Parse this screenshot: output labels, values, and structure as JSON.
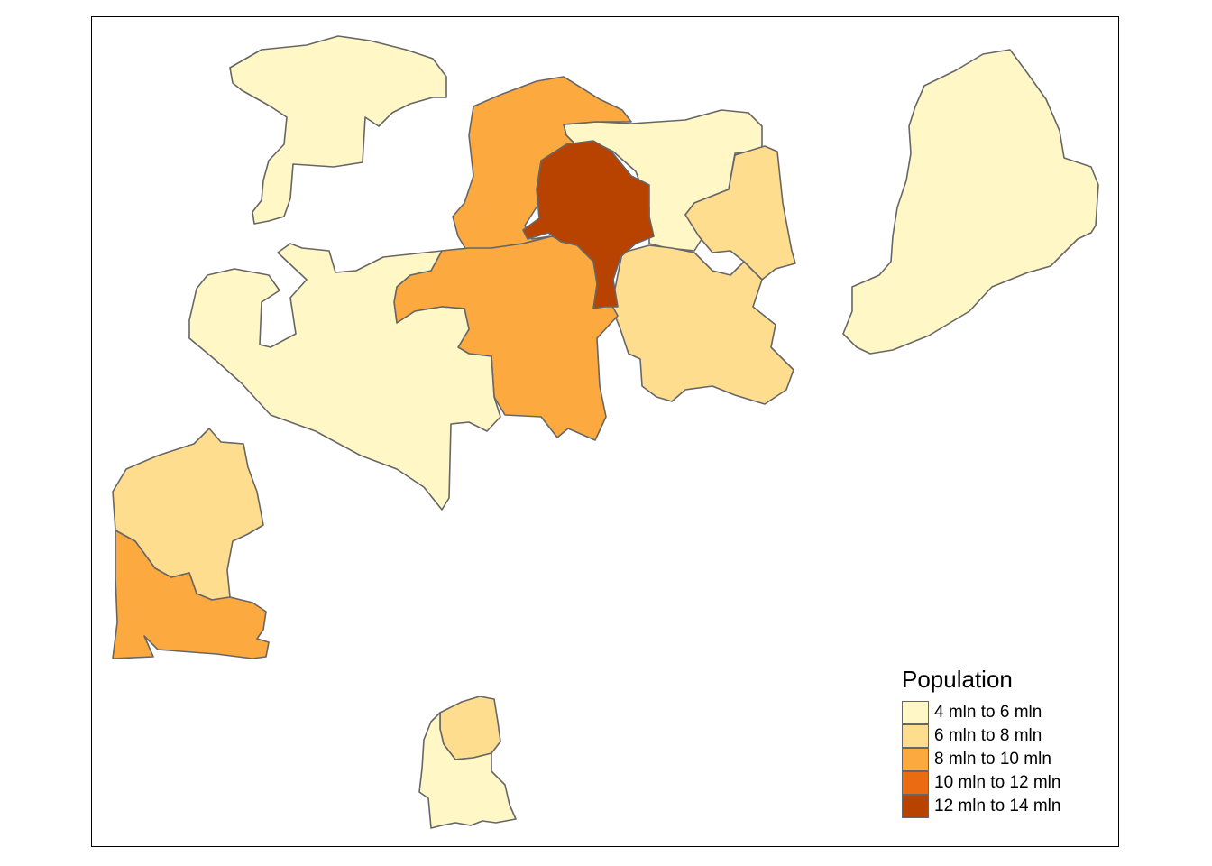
{
  "legend": {
    "title": "Population",
    "classes": [
      {
        "label": "4 mln to 6 mln",
        "color": "#FFF7C6"
      },
      {
        "label": "6 mln to 8 mln",
        "color": "#FEDD8E"
      },
      {
        "label": "8 mln to 10 mln",
        "color": "#FCAA3F"
      },
      {
        "label": "10 mln to 12 mln",
        "color": "#EB6B12"
      },
      {
        "label": "12 mln to 14 mln",
        "color": "#B84200"
      }
    ]
  },
  "regions": [
    {
      "id": "north-west",
      "class": 0
    },
    {
      "id": "north-central",
      "class": 2
    },
    {
      "id": "north",
      "class": 0
    },
    {
      "id": "capital",
      "class": 4
    },
    {
      "id": "east-central",
      "class": 1
    },
    {
      "id": "south-east-central",
      "class": 1
    },
    {
      "id": "central",
      "class": 2
    },
    {
      "id": "west-central",
      "class": 0
    },
    {
      "id": "far-east",
      "class": 0
    },
    {
      "id": "south-west-upper",
      "class": 1
    },
    {
      "id": "south-west-coast",
      "class": 2
    },
    {
      "id": "south-island-north",
      "class": 1
    },
    {
      "id": "south-island-south",
      "class": 0
    }
  ]
}
